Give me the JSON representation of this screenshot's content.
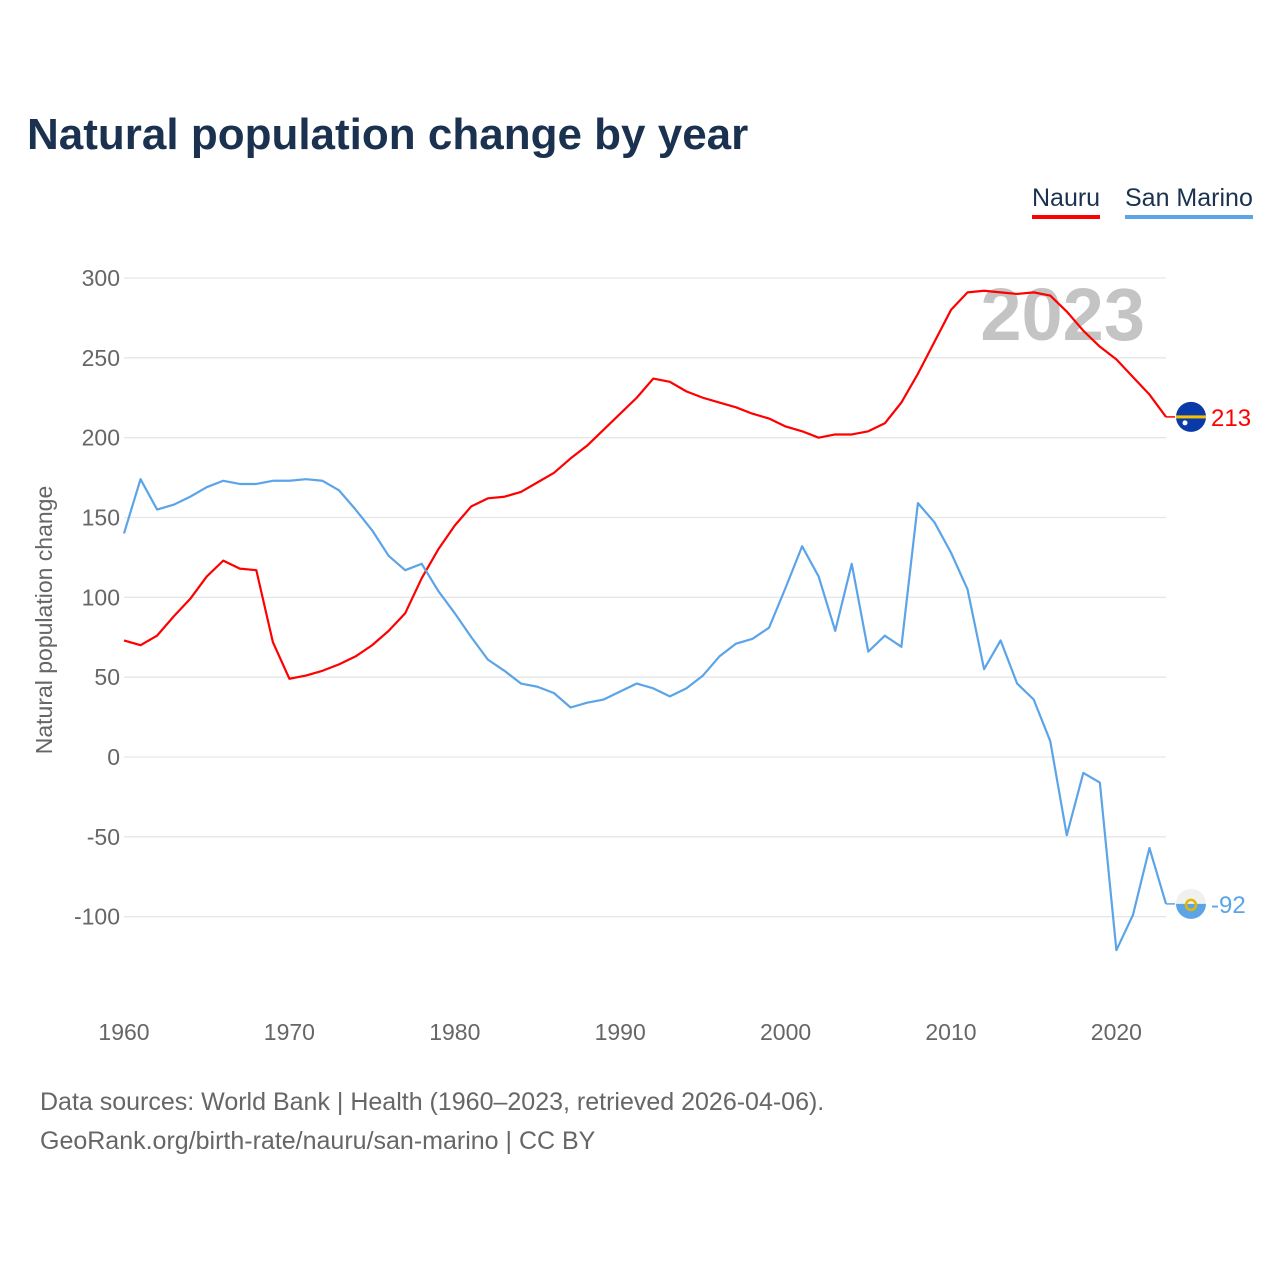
{
  "title": "Natural population change by year",
  "legend": [
    {
      "label": "Nauru",
      "color": "#ff0000"
    },
    {
      "label": "San Marino",
      "color": "#5ba4e8"
    }
  ],
  "chart_data": {
    "type": "line",
    "title": "Natural population change by year",
    "xlabel": "",
    "ylabel": "Natural population change",
    "xlim": [
      1960,
      2023
    ],
    "ylim": [
      -100,
      300
    ],
    "yticks": [
      300,
      250,
      200,
      150,
      100,
      50,
      0,
      -50,
      -100
    ],
    "xticks": [
      1960,
      1970,
      1980,
      1990,
      2000,
      2010,
      2020
    ],
    "grid": true,
    "legend_position": "top-right",
    "year_label": "2023",
    "x_start": 1960,
    "series": [
      {
        "name": "Nauru",
        "color": "#ff0000",
        "end_label": "213",
        "flag": "nauru-flag",
        "values": [
          73,
          70,
          76,
          88,
          99,
          113,
          123,
          118,
          117,
          72,
          49,
          51,
          54,
          58,
          63,
          70,
          79,
          90,
          112,
          130,
          145,
          157,
          162,
          163,
          166,
          172,
          178,
          187,
          195,
          205,
          215,
          225,
          237,
          235,
          229,
          225,
          222,
          219,
          215,
          212,
          207,
          204,
          200,
          202,
          202,
          204,
          209,
          222,
          240,
          260,
          280,
          291,
          292,
          291,
          290,
          291,
          289,
          279,
          267,
          257,
          249,
          238,
          227,
          213
        ]
      },
      {
        "name": "San Marino",
        "color": "#5ba4e8",
        "end_label": "-92",
        "flag": "san-marino-flag",
        "values": [
          140,
          174,
          155,
          158,
          163,
          169,
          173,
          171,
          171,
          173,
          173,
          174,
          173,
          167,
          155,
          142,
          126,
          117,
          121,
          104,
          90,
          75,
          61,
          54,
          46,
          44,
          40,
          31,
          34,
          36,
          41,
          46,
          43,
          38,
          43,
          51,
          63,
          71,
          74,
          81,
          106,
          132,
          113,
          79,
          121,
          66,
          76,
          69,
          159,
          147,
          128,
          105,
          55,
          73,
          46,
          36,
          10,
          -49,
          -10,
          -16,
          -121,
          -99,
          -57,
          -92
        ]
      }
    ]
  },
  "footer": {
    "line1": "Data sources: World Bank | Health (1960–2023, retrieved 2026-04-06).",
    "line2": "GeoRank.org/birth-rate/nauru/san-marino | CC BY"
  }
}
